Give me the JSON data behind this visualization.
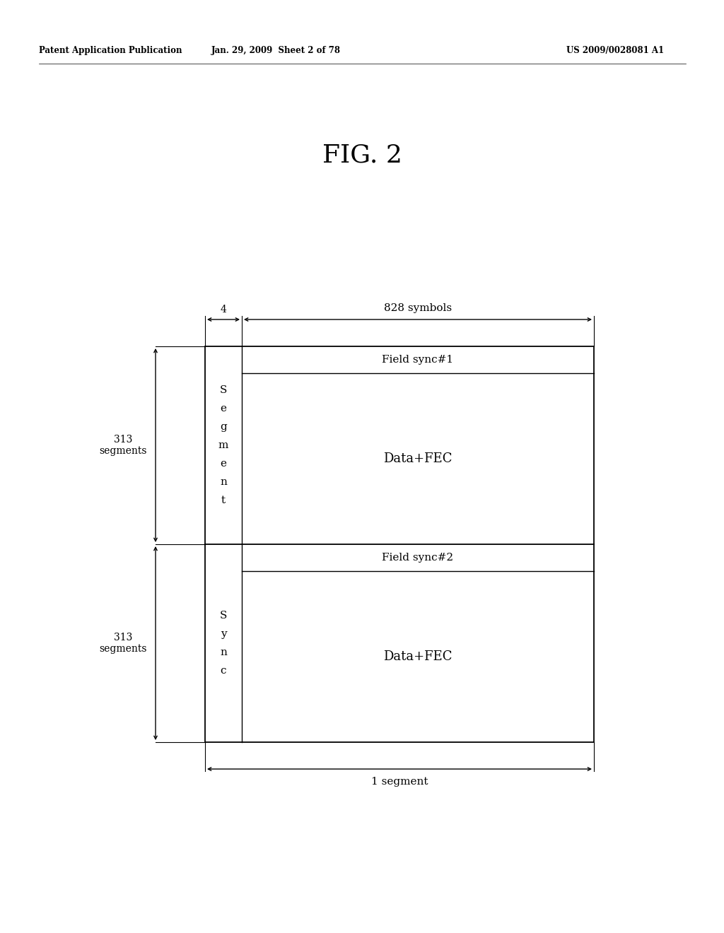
{
  "header_left": "Patent Application Publication",
  "header_mid": "Jan. 29, 2009  Sheet 2 of 78",
  "header_right": "US 2009/0028081 A1",
  "background_color": "#ffffff",
  "text_color": "#000000",
  "diagram": {
    "fig_title": "FIG. 2",
    "label_828": "828 symbols",
    "label_4": "4",
    "label_field_sync1": "Field sync#1",
    "label_data_fec1": "Data+FEC",
    "label_field_sync2": "Field sync#2",
    "label_data_fec2": "Data+FEC",
    "label_313_top": "313\nsegments",
    "label_313_bot": "313\nsegments",
    "label_1_segment": "1 segment",
    "sync_chars_top": [
      "S",
      "e",
      "g",
      "m",
      "e",
      "n",
      "t"
    ],
    "sync_chars_bot": [
      "S",
      "y",
      "n",
      "c"
    ]
  }
}
